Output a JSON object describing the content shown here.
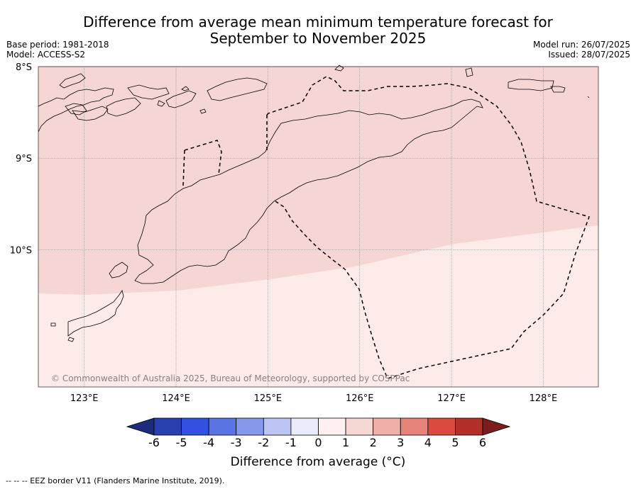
{
  "title": {
    "line1": "Difference from average mean minimum temperature forecast for",
    "line2": "September to November 2025"
  },
  "meta_left": {
    "base_period": "Base period: 1981-2018",
    "model": "Model: ACCESS-S2"
  },
  "meta_right": {
    "model_run": "Model run: 26/07/2025",
    "issued": "Issued: 28/07/2025"
  },
  "map": {
    "lon_range": [
      122.5,
      128.6
    ],
    "lat_range": [
      -11.5,
      -8.0
    ],
    "lon_ticks": [
      {
        "value": 123,
        "label": "123°E"
      },
      {
        "value": 124,
        "label": "124°E"
      },
      {
        "value": 125,
        "label": "125°E"
      },
      {
        "value": 126,
        "label": "126°E"
      },
      {
        "value": 127,
        "label": "127°E"
      },
      {
        "value": 128,
        "label": "128°E"
      }
    ],
    "lat_ticks": [
      {
        "value": -8,
        "label": "8°S"
      },
      {
        "value": -9,
        "label": "9°S"
      },
      {
        "value": -10,
        "label": "10°S"
      }
    ],
    "regions": [
      {
        "category": "1 to 2",
        "color": "#f5d6d4"
      },
      {
        "category": "0 to 1",
        "color": "#fcebe9"
      }
    ],
    "copyright": "© Commonwealth of Australia 2025, Bureau of Meteorology, supported by COSPPac"
  },
  "colorbar": {
    "ticks": [
      "-6",
      "-5",
      "-4",
      "-3",
      "-2",
      "-1",
      "0",
      "1",
      "2",
      "3",
      "4",
      "5",
      "6"
    ],
    "colors": [
      "#1e2a7a",
      "#2a3fb0",
      "#3151e0",
      "#5a74e4",
      "#8598ea",
      "#bcc4f2",
      "#e9ecfa",
      "#fdf0ef",
      "#f7d7d4",
      "#efb0a9",
      "#e6847c",
      "#db4a3f",
      "#b1302a",
      "#7d1c1c"
    ],
    "label": "Difference from average (°C)"
  },
  "footnote": "-- -- -- EEZ border V11 (Flanders Marine Institute, 2019)."
}
